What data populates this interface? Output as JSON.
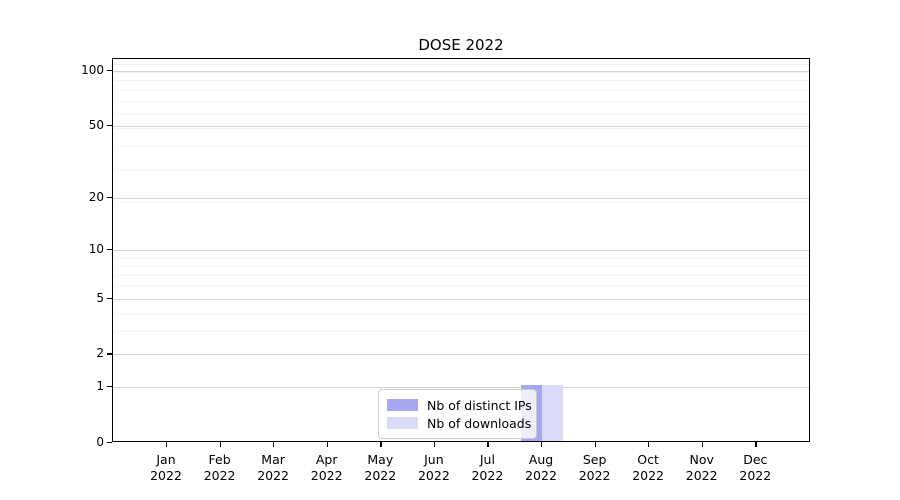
{
  "chart_data": {
    "type": "bar",
    "title": "DOSE 2022",
    "categories": [
      "Jan 2022",
      "Feb 2022",
      "Mar 2022",
      "Apr 2022",
      "May 2022",
      "Jun 2022",
      "Jul 2022",
      "Aug 2022",
      "Sep 2022",
      "Oct 2022",
      "Nov 2022",
      "Dec 2022"
    ],
    "series": [
      {
        "name": "Nb of distinct IPs",
        "color": "#a6a6f1",
        "values": [
          0,
          0,
          0,
          0,
          0,
          0,
          0,
          1,
          0,
          0,
          0,
          0
        ]
      },
      {
        "name": "Nb of downloads",
        "color": "#d9d9f8",
        "values": [
          0,
          0,
          0,
          0,
          0,
          0,
          0,
          1,
          0,
          0,
          0,
          0
        ]
      }
    ],
    "xlabel": "",
    "ylabel": "",
    "y_axis": {
      "scale": "log1p",
      "ticks": [
        0,
        1,
        2,
        5,
        10,
        20,
        50,
        100
      ],
      "ylim": [
        0,
        116
      ]
    },
    "grid": true,
    "legend_position": "lower center"
  }
}
